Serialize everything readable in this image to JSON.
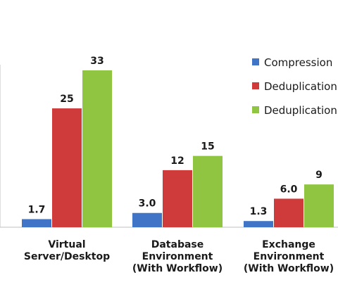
{
  "chart_data": {
    "type": "bar",
    "categories": [
      [
        "Virtual",
        "Server/Desktop"
      ],
      [
        "Database",
        "Environment",
        "(With Workflow)"
      ],
      [
        "Exchange",
        "Environment",
        "(With Workflow)"
      ]
    ],
    "series": [
      {
        "name": "Compression",
        "values": [
          1.7,
          3.0,
          1.3
        ],
        "labels": [
          "1.7",
          "3.0",
          "1.3"
        ],
        "color": "#3f74c6"
      },
      {
        "name": "Deduplication",
        "values": [
          25,
          12,
          6.0
        ],
        "labels": [
          "25",
          "12",
          "6.0"
        ],
        "color": "#cf3a3a"
      },
      {
        "name": "Deduplication",
        "values": [
          33,
          15,
          9
        ],
        "labels": [
          "33",
          "15",
          "9"
        ],
        "color": "#8fc540"
      }
    ],
    "legend_position": "right",
    "grid": false
  }
}
